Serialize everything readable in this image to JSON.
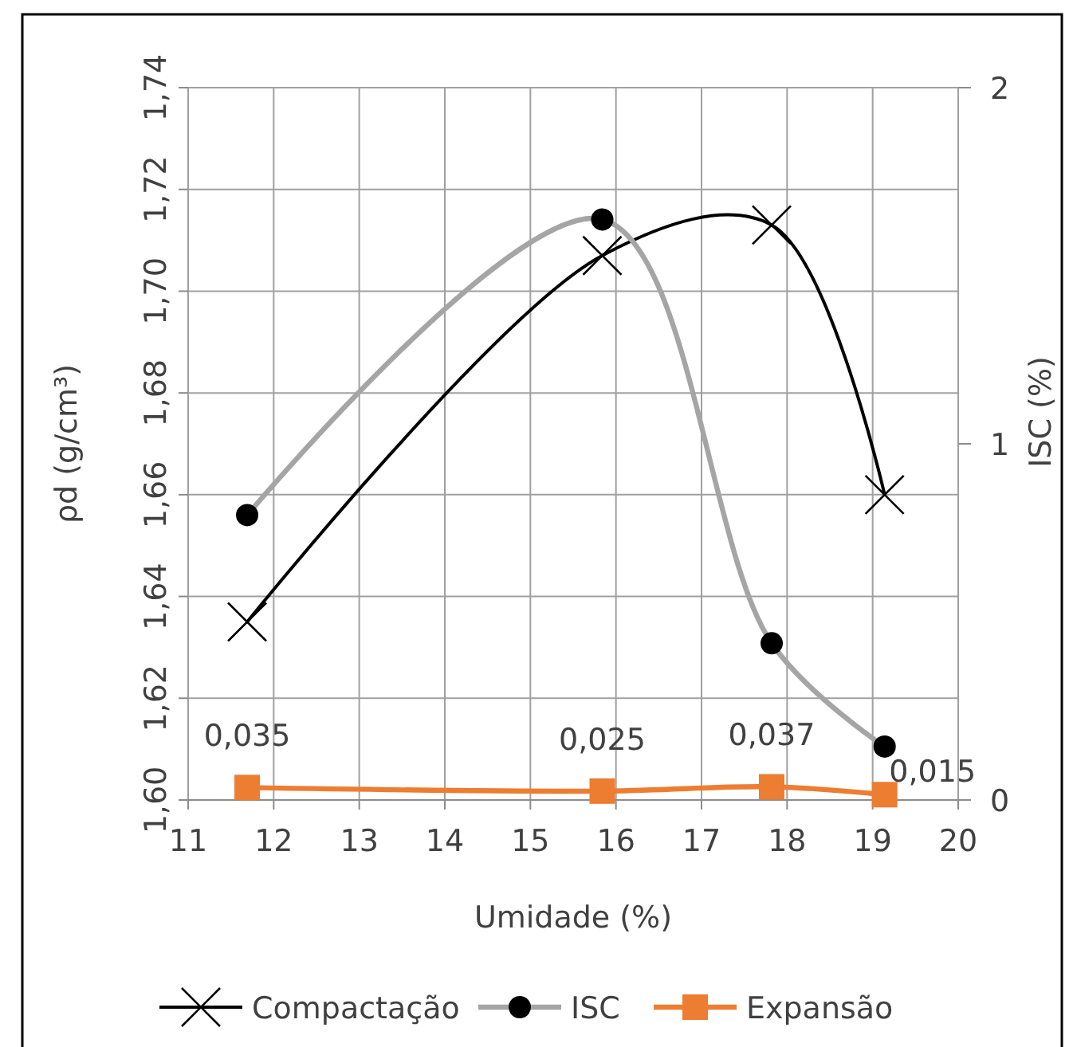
{
  "chart_data": {
    "type": "line",
    "xlabel": "Umidade (%)",
    "ylabel": "ρd (g/cm³)",
    "y2label": "ISC (%)",
    "xlim": [
      11,
      20
    ],
    "xticks": [
      11,
      12,
      13,
      14,
      15,
      16,
      17,
      18,
      19,
      20
    ],
    "ylim": [
      1.6,
      1.74
    ],
    "yticks": [
      {
        "value": 1.6,
        "label": "1,60"
      },
      {
        "value": 1.62,
        "label": "1,62"
      },
      {
        "value": 1.64,
        "label": "1,64"
      },
      {
        "value": 1.66,
        "label": "1,66"
      },
      {
        "value": 1.68,
        "label": "1,68"
      },
      {
        "value": 1.7,
        "label": "1,70"
      },
      {
        "value": 1.72,
        "label": "1,72"
      },
      {
        "value": 1.74,
        "label": "1,74"
      }
    ],
    "y2lim": [
      0,
      2
    ],
    "y2ticks": [
      0,
      1,
      2
    ],
    "grid": true,
    "legend": "bottom",
    "series": [
      {
        "name": "Compactação",
        "color": "#000000",
        "marker": "cross",
        "x": [
          11.69,
          15.84,
          17.82,
          19.14
        ],
        "values": [
          1.635,
          1.707,
          1.713,
          1.66
        ]
      },
      {
        "name": "ISC",
        "color": "#a5a5a5",
        "marker": "circle",
        "axis": "y2",
        "x": [
          11.69,
          15.84,
          17.82,
          19.14
        ],
        "values": [
          0.8,
          1.63,
          0.44,
          0.15
        ]
      },
      {
        "name": "Expansão",
        "color": "#ed7d31",
        "marker": "square",
        "axis": "y2",
        "x": [
          11.69,
          15.84,
          17.82,
          19.14
        ],
        "values": [
          0.035,
          0.025,
          0.037,
          0.015
        ],
        "value_labels": [
          "0,035",
          "0,025",
          "0,037",
          "0,015"
        ]
      }
    ]
  }
}
